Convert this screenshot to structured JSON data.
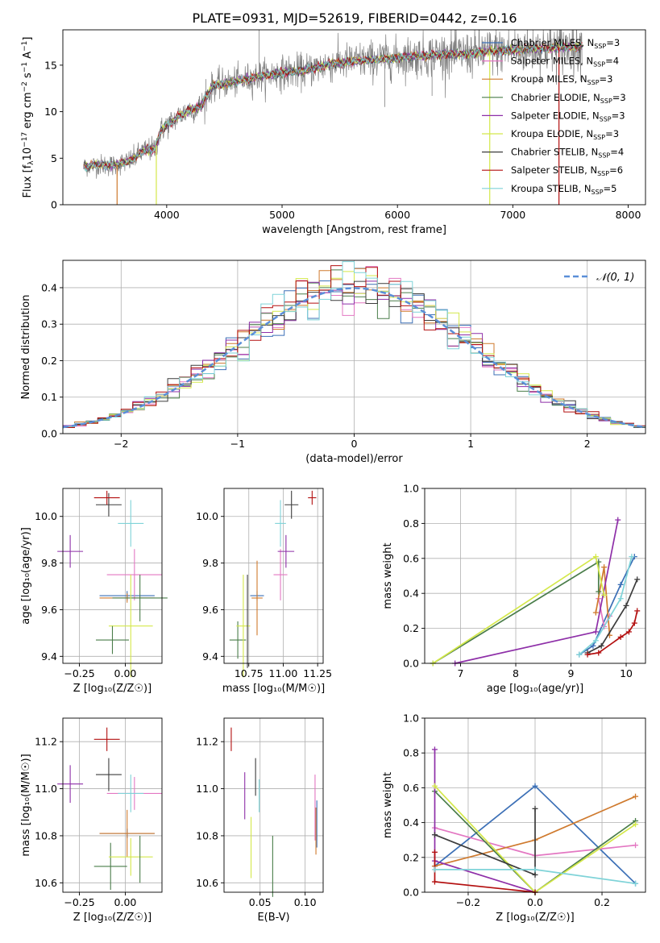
{
  "figure_title": "PLATE=0931, MJD=52619, FIBERID=0442, z=0.16",
  "series_styles": [
    {
      "name": "Chabrier MILES, N_SSP=3",
      "label_main": "Chabrier MILES, N",
      "label_sub": "SSP",
      "label_end": "=3",
      "color": "#3b6fb6"
    },
    {
      "name": "Salpeter MILES, N_SSP=4",
      "label_main": "Salpeter MILES, N",
      "label_sub": "SSP",
      "label_end": "=4",
      "color": "#e377c2"
    },
    {
      "name": "Kroupa MILES, N_SSP=3",
      "label_main": "Kroupa MILES, N",
      "label_sub": "SSP",
      "label_end": "=3",
      "color": "#cf7a2e"
    },
    {
      "name": "Chabrier ELODIE, N_SSP=3",
      "label_main": "Chabrier ELODIE, N",
      "label_sub": "SSP",
      "label_end": "=3",
      "color": "#4a7d4a"
    },
    {
      "name": "Salpeter ELODIE, N_SSP=3",
      "label_main": "Salpeter ELODIE, N",
      "label_sub": "SSP",
      "label_end": "=3",
      "color": "#8e2fa8"
    },
    {
      "name": "Kroupa ELODIE, N_SSP=3",
      "label_main": "Kroupa ELODIE, N",
      "label_sub": "SSP",
      "label_end": "=3",
      "color": "#d4e84a"
    },
    {
      "name": "Chabrier STELIB, N_SSP=4",
      "label_main": "Chabrier STELIB, N",
      "label_sub": "SSP",
      "label_end": "=4",
      "color": "#3c3c3c"
    },
    {
      "name": "Salpeter STELIB, N_SSP=6",
      "label_main": "Salpeter STELIB, N",
      "label_sub": "SSP",
      "label_end": "=6",
      "color": "#b30f0f"
    },
    {
      "name": "Kroupa STELIB, N_SSP=5",
      "label_main": "Kroupa STELIB, N",
      "label_sub": "SSP",
      "label_end": "=5",
      "color": "#7fd3d8"
    }
  ],
  "chart_data": [
    {
      "id": "spectrum",
      "type": "line",
      "xlabel": "wavelength [Angstrom, rest frame]",
      "ylabel_parts": [
        "Flux [f",
        "λ",
        "10",
        "−17",
        " erg cm",
        "−2",
        " s",
        "−1",
        " A",
        "−1",
        "]"
      ],
      "xlim": [
        3100,
        8150
      ],
      "ylim": [
        0,
        18.8
      ],
      "xticks": [
        4000,
        5000,
        6000,
        7000,
        8000
      ],
      "yticks": [
        0,
        5,
        10,
        15
      ],
      "data_color": "#808080",
      "data_anchors": {
        "x": [
          3280,
          3400,
          3550,
          3700,
          3800,
          3900,
          3950,
          4000,
          4100,
          4200,
          4300,
          4400,
          4600,
          4800,
          5000,
          5200,
          5400,
          5600,
          5800,
          6000,
          6200,
          6400,
          6600,
          6800,
          7000,
          7200,
          7400,
          7600
        ],
        "y": [
          4.1,
          4.3,
          4.2,
          4.8,
          5.8,
          6.0,
          8.0,
          8.5,
          9.5,
          10.2,
          10.6,
          12.8,
          13.2,
          13.8,
          14.2,
          14.4,
          15.1,
          15.4,
          15.6,
          15.8,
          16.0,
          16.2,
          16.2,
          16.5,
          16.6,
          16.8,
          16.9,
          17.0
        ]
      },
      "model_dropouts": [
        {
          "series": "Kroupa MILES, N_SSP=3",
          "x": 3570
        },
        {
          "series": "Kroupa ELODIE, N_SSP=3",
          "x": 3910
        },
        {
          "series": "Salpeter STELIB, N_SSP=6",
          "x": 7400
        },
        {
          "series": "Kroupa ELODIE, N_SSP=3",
          "x": 6800
        }
      ]
    },
    {
      "id": "residual-hist",
      "type": "histogram",
      "xlabel": "(data-model)/error",
      "ylabel": "Normed distribution",
      "xlim": [
        -2.5,
        2.5
      ],
      "ylim": [
        0,
        0.475
      ],
      "xticks": [
        -2,
        -1,
        0,
        1,
        2
      ],
      "yticks": [
        0.0,
        0.1,
        0.2,
        0.3,
        0.4
      ],
      "xtick_labels": [
        "−2",
        "−1",
        "0",
        "1",
        "2"
      ],
      "ytick_labels": [
        "0.0",
        "0.1",
        "0.2",
        "0.3",
        "0.4"
      ],
      "bin_width": 0.1,
      "gaussian": {
        "mean": 0,
        "sigma": 1,
        "color": "#5b8fd8",
        "label": "𝒩(0, 1)"
      }
    },
    {
      "id": "age-vs-Z",
      "type": "errorbar",
      "xlabel": "Z [log₁₀(Z/Z☉)]",
      "ylabel": "age  [log₁₀(age/yr)]",
      "xlim": [
        -0.34,
        0.2
      ],
      "ylim": [
        9.37,
        10.12
      ],
      "xticks": [
        -0.25,
        0.0
      ],
      "xtick_labels": [
        "−0.25",
        "0.00"
      ],
      "yticks": [
        9.4,
        9.6,
        9.8,
        10.0
      ],
      "ytick_labels": [
        "9.4",
        "9.6",
        "9.8",
        "10.0"
      ],
      "points": [
        {
          "s": 0,
          "x": 0.01,
          "y": 9.66,
          "xerr": 0.15,
          "yerr": 0.02
        },
        {
          "s": 1,
          "x": 0.05,
          "y": 9.75,
          "xerr": 0.15,
          "yerr": 0.11
        },
        {
          "s": 2,
          "x": 0.01,
          "y": 9.65,
          "xerr": 0.15,
          "yerr": 0.02
        },
        {
          "s": 3,
          "x": 0.08,
          "y": 9.65,
          "xerr": 0.15,
          "yerr": 0.1
        },
        {
          "s": 4,
          "x": -0.3,
          "y": 9.85,
          "xerr": 0.07,
          "yerr": 0.07
        },
        {
          "s": 5,
          "x": 0.03,
          "y": 9.53,
          "xerr": 0.12,
          "yerr": 0.22
        },
        {
          "s": 6,
          "x": -0.09,
          "y": 10.05,
          "xerr": 0.07,
          "yerr": 0.05
        },
        {
          "s": 7,
          "x": -0.1,
          "y": 10.08,
          "xerr": 0.07,
          "yerr": 0.03
        },
        {
          "s": 8,
          "x": 0.03,
          "y": 9.97,
          "xerr": 0.07,
          "yerr": 0.1
        },
        {
          "s": 3,
          "x": -0.07,
          "y": 9.47,
          "xerr": 0.09,
          "yerr": 0.06
        }
      ]
    },
    {
      "id": "age-vs-mass",
      "type": "errorbar",
      "xlabel": "mass [log₁₀(M/M☉)]",
      "ylabel": "",
      "xlim": [
        10.57,
        11.29
      ],
      "ylim": [
        9.37,
        10.12
      ],
      "xticks": [
        10.75,
        11.0,
        11.25
      ],
      "xtick_labels": [
        "10.75",
        "11.00",
        "11.25"
      ],
      "yticks": [
        9.4,
        9.6,
        9.8,
        10.0
      ],
      "ytick_labels": [
        "9.4",
        "9.6",
        "9.8",
        "10.0"
      ],
      "points": [
        {
          "s": 0,
          "x": 10.81,
          "y": 9.66,
          "xerr": 0.05,
          "yerr": 0.02
        },
        {
          "s": 1,
          "x": 10.98,
          "y": 9.75,
          "xerr": 0.05,
          "yerr": 0.11
        },
        {
          "s": 2,
          "x": 10.81,
          "y": 9.65,
          "xerr": 0.04,
          "yerr": 0.16
        },
        {
          "s": 3,
          "x": 10.67,
          "y": 9.47,
          "xerr": 0.06,
          "yerr": 0.08
        },
        {
          "s": 4,
          "x": 11.02,
          "y": 9.85,
          "xerr": 0.06,
          "yerr": 0.07
        },
        {
          "s": 5,
          "x": 10.71,
          "y": 9.53,
          "xerr": 0.05,
          "yerr": 0.22
        },
        {
          "s": 6,
          "x": 11.06,
          "y": 10.05,
          "xerr": 0.05,
          "yerr": 0.06
        },
        {
          "s": 7,
          "x": 11.21,
          "y": 10.08,
          "xerr": 0.03,
          "yerr": 0.03
        },
        {
          "s": 8,
          "x": 10.98,
          "y": 9.97,
          "xerr": 0.04,
          "yerr": 0.1
        },
        {
          "s": 6,
          "x": 10.74,
          "y": 9.55,
          "xerr": 0.0,
          "yerr": 0.2
        }
      ]
    },
    {
      "id": "weight-vs-age",
      "type": "line",
      "xlabel": "age  [log₁₀(age/yr)]",
      "ylabel": "mass weight",
      "xlim": [
        6.35,
        10.35
      ],
      "ylim": [
        0,
        1.0
      ],
      "xticks": [
        7,
        8,
        9,
        10
      ],
      "xtick_labels": [
        "7",
        "8",
        "9",
        "10"
      ],
      "yticks": [
        0.0,
        0.2,
        0.4,
        0.6,
        0.8,
        1.0
      ],
      "ytick_labels": [
        "0.0",
        "0.2",
        "0.4",
        "0.6",
        "0.8",
        "1.0"
      ],
      "series": [
        {
          "s": 0,
          "x": [
            9.15,
            9.4,
            9.9,
            10.15
          ],
          "y": [
            0.05,
            0.1,
            0.45,
            0.61
          ]
        },
        {
          "s": 1,
          "x": [
            9.5,
            9.6,
            9.7
          ],
          "y": [
            0.37,
            0.21,
            0.27
          ]
        },
        {
          "s": 2,
          "x": [
            9.45,
            9.6,
            9.7
          ],
          "y": [
            0.29,
            0.55,
            0.16
          ]
        },
        {
          "s": 3,
          "x": [
            6.5,
            9.5,
            9.5
          ],
          "y": [
            0.0,
            0.58,
            0.41
          ]
        },
        {
          "s": 4,
          "x": [
            6.9,
            9.45,
            9.85
          ],
          "y": [
            0.0,
            0.18,
            0.82
          ]
        },
        {
          "s": 5,
          "x": [
            6.5,
            9.45,
            9.6
          ],
          "y": [
            0.0,
            0.61,
            0.39
          ]
        },
        {
          "s": 6,
          "x": [
            9.3,
            9.55,
            10.0,
            10.2
          ],
          "y": [
            0.06,
            0.1,
            0.33,
            0.48
          ]
        },
        {
          "s": 7,
          "x": [
            9.3,
            9.5,
            9.9,
            10.05,
            10.15,
            10.2
          ],
          "y": [
            0.05,
            0.06,
            0.15,
            0.18,
            0.23,
            0.3
          ]
        },
        {
          "s": 8,
          "x": [
            9.15,
            9.45,
            9.9,
            10.1
          ],
          "y": [
            0.05,
            0.13,
            0.37,
            0.61
          ]
        }
      ]
    },
    {
      "id": "mass-vs-Z",
      "type": "errorbar",
      "xlabel": "Z [log₁₀(Z/Z☉)]",
      "ylabel": "mass [log₁₀(M/M☉)]",
      "xlim": [
        -0.34,
        0.2
      ],
      "ylim": [
        10.56,
        11.3
      ],
      "xticks": [
        -0.25,
        0.0
      ],
      "xtick_labels": [
        "−0.25",
        "0.00"
      ],
      "yticks": [
        10.6,
        10.8,
        11.0,
        11.2
      ],
      "ytick_labels": [
        "10.6",
        "10.8",
        "11.0",
        "11.2"
      ],
      "points": [
        {
          "s": 0,
          "x": 0.01,
          "y": 10.81,
          "xerr": 0.15,
          "yerr": 0.02
        },
        {
          "s": 1,
          "x": 0.05,
          "y": 10.98,
          "xerr": 0.15,
          "yerr": 0.07
        },
        {
          "s": 2,
          "x": 0.01,
          "y": 10.81,
          "xerr": 0.15,
          "yerr": 0.1
        },
        {
          "s": 3,
          "x": -0.08,
          "y": 10.67,
          "xerr": 0.09,
          "yerr": 0.1
        },
        {
          "s": 4,
          "x": -0.3,
          "y": 11.02,
          "xerr": 0.07,
          "yerr": 0.08
        },
        {
          "s": 5,
          "x": 0.03,
          "y": 10.71,
          "xerr": 0.12,
          "yerr": 0.08
        },
        {
          "s": 6,
          "x": -0.09,
          "y": 11.06,
          "xerr": 0.07,
          "yerr": 0.07
        },
        {
          "s": 7,
          "x": -0.1,
          "y": 11.21,
          "xerr": 0.07,
          "yerr": 0.05
        },
        {
          "s": 8,
          "x": 0.03,
          "y": 10.98,
          "xerr": 0.07,
          "yerr": 0.08
        },
        {
          "s": 3,
          "x": 0.08,
          "y": 10.7,
          "xerr": 0.0,
          "yerr": 0.1
        }
      ]
    },
    {
      "id": "mass-vs-EBV",
      "type": "errorbar",
      "xlabel": "E(B-V)",
      "ylabel": "",
      "xlim": [
        0.01,
        0.12
      ],
      "ylim": [
        10.56,
        11.3
      ],
      "xticks": [
        0.05,
        0.1
      ],
      "xtick_labels": [
        "0.05",
        "0.10"
      ],
      "yticks": [
        10.6,
        10.8,
        11.0,
        11.2
      ],
      "ytick_labels": [
        "10.6",
        "10.8",
        "11.0",
        "11.2"
      ],
      "points": [
        {
          "s": 0,
          "x": 0.113,
          "y": 10.85,
          "xerr": 0,
          "yerr": 0.1
        },
        {
          "s": 1,
          "x": 0.111,
          "y": 10.92,
          "xerr": 0,
          "yerr": 0.14
        },
        {
          "s": 2,
          "x": 0.112,
          "y": 10.82,
          "xerr": 0,
          "yerr": 0.1
        },
        {
          "s": 3,
          "x": 0.064,
          "y": 10.67,
          "xerr": 0,
          "yerr": 0.13
        },
        {
          "s": 4,
          "x": 0.033,
          "y": 10.97,
          "xerr": 0,
          "yerr": 0.1
        },
        {
          "s": 5,
          "x": 0.04,
          "y": 10.75,
          "xerr": 0,
          "yerr": 0.13
        },
        {
          "s": 6,
          "x": 0.045,
          "y": 11.05,
          "xerr": 0,
          "yerr": 0.08
        },
        {
          "s": 7,
          "x": 0.018,
          "y": 11.21,
          "xerr": 0,
          "yerr": 0.05
        },
        {
          "s": 8,
          "x": 0.049,
          "y": 10.97,
          "xerr": 0,
          "yerr": 0.07
        }
      ]
    },
    {
      "id": "weight-vs-Z",
      "type": "line",
      "xlabel": "Z [log₁₀(Z/Z☉)]",
      "ylabel": "mass weight",
      "xlim": [
        -0.33,
        0.33
      ],
      "ylim": [
        0,
        1.0
      ],
      "xticks": [
        -0.2,
        0.0,
        0.2
      ],
      "xtick_labels": [
        "−0.2",
        "0.0",
        "0.2"
      ],
      "yticks": [
        0.0,
        0.2,
        0.4,
        0.6,
        0.8,
        1.0
      ],
      "ytick_labels": [
        "0.0",
        "0.2",
        "0.4",
        "0.6",
        "0.8",
        "1.0"
      ],
      "series": [
        {
          "s": 0,
          "x": [
            -0.3,
            0.0,
            0.3
          ],
          "y": [
            0.15,
            0.61,
            0.05
          ]
        },
        {
          "s": 1,
          "x": [
            -0.3,
            0.0,
            0.3
          ],
          "y": [
            0.37,
            0.21,
            0.27
          ]
        },
        {
          "s": 2,
          "x": [
            -0.3,
            0.0,
            0.3
          ],
          "y": [
            0.15,
            0.3,
            0.55
          ]
        },
        {
          "s": 3,
          "x": [
            -0.3,
            0.0,
            0.3
          ],
          "y": [
            0.58,
            0.0,
            0.41
          ]
        },
        {
          "s": 4,
          "x": [
            -0.3,
            -0.3,
            0.0
          ],
          "y": [
            0.82,
            0.18,
            0.0
          ]
        },
        {
          "s": 5,
          "x": [
            -0.3,
            0.0,
            0.3
          ],
          "y": [
            0.61,
            0.0,
            0.39
          ]
        },
        {
          "s": 6,
          "x": [
            -0.3,
            0.0,
            0.0
          ],
          "y": [
            0.33,
            0.1,
            0.48
          ]
        },
        {
          "s": 7,
          "x": [
            -0.3,
            -0.3,
            0.0
          ],
          "y": [
            0.23,
            0.06,
            0.0
          ]
        },
        {
          "s": 8,
          "x": [
            -0.3,
            0.0,
            0.3
          ],
          "y": [
            0.13,
            0.13,
            0.05
          ]
        }
      ]
    }
  ]
}
